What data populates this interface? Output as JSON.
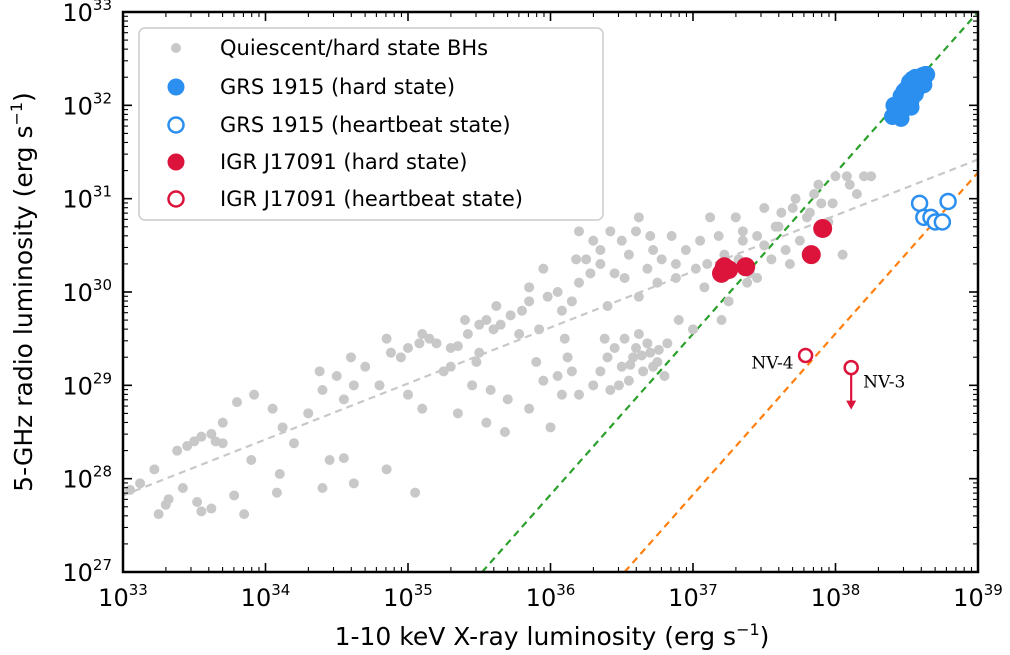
{
  "chart_data": {
    "type": "scatter",
    "xscale": "log",
    "yscale": "log",
    "xlim_exp": [
      33,
      39
    ],
    "ylim_exp": [
      27,
      33
    ],
    "tick_base": "10",
    "x_ticks": [
      "33",
      "34",
      "35",
      "36",
      "37",
      "38",
      "39"
    ],
    "y_ticks": [
      "27",
      "28",
      "29",
      "30",
      "31",
      "32",
      "33"
    ],
    "xlabel": {
      "text": "1-10 keV X-ray luminosity (erg s",
      "exp": "−1",
      "close": ")"
    },
    "ylabel": {
      "text": "5-GHz radio luminosity (erg s",
      "exp": "−1",
      "close": ")"
    },
    "legend": {
      "placement": "top-left",
      "entries": [
        {
          "label": "Quiescent/hard state BHs",
          "marker": "small-filled",
          "color": "#c8c8c8"
        },
        {
          "label": "GRS 1915 (hard state)",
          "marker": "filled",
          "color": "#2b8ff0"
        },
        {
          "label": "GRS 1915 (heartbeat state)",
          "marker": "open",
          "color": "#2b8ff0"
        },
        {
          "label": "IGR J17091 (hard state)",
          "marker": "filled",
          "color": "#dc143c"
        },
        {
          "label": "IGR J17091 (heartbeat state)",
          "marker": "open",
          "color": "#dc143c"
        }
      ]
    },
    "fit_lines": [
      {
        "name": "quiescent-hard-fit",
        "color": "#c8c8c8",
        "points": [
          [
            33.0,
            27.82
          ],
          [
            39.0,
            31.42
          ]
        ]
      },
      {
        "name": "green-correlation",
        "color": "#2ca02c",
        "points": [
          [
            35.52,
            27.0
          ],
          [
            39.0,
            33.0
          ]
        ]
      },
      {
        "name": "orange-correlation",
        "color": "#ff7f0e",
        "points": [
          [
            36.52,
            27.0
          ],
          [
            39.0,
            31.28
          ]
        ]
      }
    ],
    "series": [
      {
        "name": "Quiescent/hard state BHs",
        "color": "#c8c8c8",
        "points": [
          [
            33.05,
            27.88
          ],
          [
            33.22,
            28.1
          ],
          [
            33.38,
            28.3
          ],
          [
            33.5,
            28.4
          ],
          [
            33.65,
            28.4
          ],
          [
            33.7,
            28.38
          ],
          [
            33.9,
            28.2
          ],
          [
            34.05,
            28.75
          ],
          [
            34.12,
            28.55
          ],
          [
            34.2,
            28.38
          ],
          [
            34.3,
            28.7
          ],
          [
            34.4,
            28.95
          ],
          [
            34.5,
            29.1
          ],
          [
            34.55,
            28.85
          ],
          [
            34.62,
            29.0
          ],
          [
            34.7,
            29.2
          ],
          [
            34.8,
            29.0
          ],
          [
            34.88,
            29.35
          ],
          [
            34.95,
            29.3
          ],
          [
            35.0,
            29.4
          ],
          [
            35.08,
            29.45
          ],
          [
            35.15,
            29.5
          ],
          [
            35.2,
            29.45
          ],
          [
            35.25,
            29.15
          ],
          [
            35.3,
            29.4
          ],
          [
            35.35,
            29.42
          ],
          [
            35.42,
            29.55
          ],
          [
            35.5,
            29.65
          ],
          [
            35.55,
            29.7
          ],
          [
            35.6,
            29.6
          ],
          [
            35.65,
            29.65
          ],
          [
            35.72,
            29.75
          ],
          [
            35.8,
            29.8
          ],
          [
            35.85,
            29.9
          ],
          [
            35.92,
            29.6
          ],
          [
            35.98,
            29.95
          ],
          [
            36.05,
            30.0
          ],
          [
            36.1,
            29.5
          ],
          [
            36.15,
            29.9
          ],
          [
            36.2,
            30.1
          ],
          [
            36.25,
            30.35
          ],
          [
            36.3,
            30.55
          ],
          [
            36.35,
            30.3
          ],
          [
            36.4,
            29.85
          ],
          [
            36.45,
            30.2
          ],
          [
            36.5,
            30.55
          ],
          [
            36.55,
            30.4
          ],
          [
            36.6,
            30.65
          ],
          [
            36.62,
            29.95
          ],
          [
            36.68,
            30.25
          ],
          [
            36.72,
            30.45
          ],
          [
            36.78,
            30.35
          ],
          [
            36.85,
            30.6
          ],
          [
            36.88,
            30.15
          ],
          [
            36.95,
            30.45
          ],
          [
            37.02,
            30.25
          ],
          [
            37.05,
            30.55
          ],
          [
            37.1,
            30.3
          ],
          [
            37.18,
            30.6
          ],
          [
            37.22,
            30.4
          ],
          [
            37.3,
            30.8
          ],
          [
            37.35,
            30.55
          ],
          [
            37.38,
            30.1
          ],
          [
            37.45,
            30.6
          ],
          [
            37.5,
            30.9
          ],
          [
            37.55,
            30.35
          ],
          [
            37.6,
            30.7
          ],
          [
            37.65,
            30.45
          ],
          [
            37.7,
            30.9
          ],
          [
            37.75,
            30.55
          ],
          [
            37.8,
            30.8
          ],
          [
            37.85,
            31.05
          ],
          [
            37.9,
            30.95
          ],
          [
            37.95,
            30.75
          ],
          [
            38.05,
            30.4
          ],
          [
            38.1,
            31.15
          ],
          [
            38.15,
            31.05
          ],
          [
            38.2,
            31.24
          ],
          [
            38.25,
            31.24
          ],
          [
            35.9,
            29.25
          ],
          [
            36.05,
            29.1
          ],
          [
            36.2,
            28.9
          ],
          [
            36.4,
            29.3
          ],
          [
            36.5,
            29.2
          ],
          [
            36.55,
            29.05
          ],
          [
            36.6,
            29.4
          ],
          [
            36.65,
            29.15
          ],
          [
            36.7,
            29.35
          ],
          [
            36.75,
            29.25
          ],
          [
            36.8,
            29.1
          ],
          [
            36.82,
            29.45
          ],
          [
            36.45,
            29.4
          ],
          [
            36.52,
            29.5
          ],
          [
            36.58,
            29.3
          ],
          [
            36.62,
            29.55
          ],
          [
            36.68,
            29.45
          ],
          [
            36.72,
            29.2
          ],
          [
            36.48,
            29.0
          ],
          [
            36.56,
            29.22
          ],
          [
            36.64,
            29.32
          ],
          [
            36.76,
            29.38
          ],
          [
            35.35,
            28.7
          ],
          [
            35.55,
            28.6
          ],
          [
            35.7,
            28.85
          ],
          [
            35.85,
            28.75
          ],
          [
            35.95,
            29.05
          ],
          [
            36.0,
            28.55
          ],
          [
            36.15,
            29.15
          ],
          [
            36.3,
            29.0
          ],
          [
            36.35,
            29.15
          ],
          [
            36.42,
            28.95
          ],
          [
            36.9,
            29.7
          ],
          [
            37.0,
            29.6
          ],
          [
            37.25,
            29.9
          ],
          [
            37.4,
            30.2
          ],
          [
            37.2,
            29.7
          ],
          [
            35.05,
            27.85
          ],
          [
            34.85,
            28.1
          ],
          [
            34.55,
            28.22
          ],
          [
            34.4,
            27.9
          ],
          [
            34.1,
            28.05
          ],
          [
            33.78,
            27.82
          ],
          [
            33.52,
            27.75
          ],
          [
            33.42,
            27.9
          ],
          [
            33.3,
            27.72
          ],
          [
            33.25,
            27.62
          ],
          [
            33.32,
            27.78
          ],
          [
            33.12,
            27.95
          ],
          [
            33.55,
            27.65
          ],
          [
            33.62,
            27.68
          ],
          [
            33.85,
            27.62
          ],
          [
            34.08,
            27.85
          ],
          [
            34.45,
            28.2
          ],
          [
            34.62,
            27.95
          ],
          [
            35.0,
            28.9
          ],
          [
            35.1,
            28.75
          ],
          [
            35.45,
            29.0
          ],
          [
            35.48,
            29.25
          ],
          [
            35.58,
            28.95
          ],
          [
            35.68,
            28.5
          ],
          [
            36.08,
            28.9
          ],
          [
            36.12,
            29.3
          ],
          [
            36.38,
            29.5
          ],
          [
            37.45,
            30.15
          ],
          [
            37.58,
            30.7
          ],
          [
            37.62,
            30.85
          ],
          [
            37.72,
            31.0
          ],
          [
            37.82,
            30.85
          ],
          [
            37.88,
            31.15
          ],
          [
            38.0,
            31.24
          ],
          [
            38.08,
            31.24
          ],
          [
            37.98,
            30.95
          ],
          [
            36.62,
            30.8
          ],
          [
            36.42,
            30.65
          ],
          [
            36.18,
            30.35
          ],
          [
            35.95,
            30.25
          ],
          [
            35.85,
            30.05
          ],
          [
            35.62,
            29.85
          ],
          [
            35.4,
            29.7
          ],
          [
            35.1,
            29.55
          ],
          [
            34.85,
            29.5
          ],
          [
            34.6,
            29.3
          ],
          [
            34.38,
            29.15
          ],
          [
            33.92,
            28.9
          ],
          [
            33.8,
            28.82
          ],
          [
            33.7,
            28.6
          ],
          [
            33.55,
            28.45
          ],
          [
            33.45,
            28.35
          ],
          [
            33.62,
            28.48
          ],
          [
            36.2,
            30.65
          ],
          [
            36.35,
            30.45
          ],
          [
            36.28,
            30.2
          ],
          [
            36.52,
            30.15
          ],
          [
            36.75,
            30.1
          ],
          [
            37.08,
            30.05
          ],
          [
            37.12,
            30.8
          ],
          [
            37.32,
            30.35
          ],
          [
            37.35,
            30.65
          ],
          [
            37.5,
            30.5
          ],
          [
            37.68,
            30.3
          ],
          [
            36.88,
            30.3
          ],
          [
            36.7,
            30.6
          ],
          [
            36.08,
            29.8
          ],
          [
            35.78,
            29.55
          ],
          [
            35.5,
            29.35
          ],
          [
            35.3,
            29.2
          ]
        ]
      },
      {
        "name": "GRS 1915 (hard state)",
        "color": "#2b8ff0",
        "points": [
          [
            38.4,
            31.88
          ],
          [
            38.42,
            31.95
          ],
          [
            38.44,
            32.0
          ],
          [
            38.45,
            31.97
          ],
          [
            38.46,
            32.02
          ],
          [
            38.47,
            32.05
          ],
          [
            38.48,
            32.08
          ],
          [
            38.49,
            32.1
          ],
          [
            38.5,
            32.05
          ],
          [
            38.5,
            32.12
          ],
          [
            38.51,
            32.08
          ],
          [
            38.52,
            32.15
          ],
          [
            38.52,
            32.18
          ],
          [
            38.53,
            32.12
          ],
          [
            38.54,
            32.2
          ],
          [
            38.55,
            32.22
          ],
          [
            38.55,
            32.15
          ],
          [
            38.56,
            32.18
          ],
          [
            38.57,
            32.25
          ],
          [
            38.58,
            32.22
          ],
          [
            38.58,
            32.28
          ],
          [
            38.59,
            32.28
          ],
          [
            38.6,
            32.3
          ],
          [
            38.6,
            32.25
          ],
          [
            38.61,
            32.32
          ],
          [
            38.62,
            32.28
          ],
          [
            38.63,
            32.33
          ],
          [
            38.64,
            32.33
          ],
          [
            38.45,
            31.92
          ],
          [
            38.43,
            31.98
          ],
          [
            38.47,
            31.95
          ],
          [
            38.49,
            32.02
          ],
          [
            38.51,
            32.02
          ],
          [
            38.53,
            32.05
          ],
          [
            38.56,
            32.12
          ],
          [
            38.59,
            32.2
          ],
          [
            38.62,
            32.22
          ],
          [
            38.46,
            32.1
          ],
          [
            38.48,
            32.15
          ],
          [
            38.5,
            32.18
          ],
          [
            38.52,
            32.25
          ],
          [
            38.54,
            32.28
          ],
          [
            38.56,
            32.3
          ],
          [
            38.41,
            32.0
          ],
          [
            38.44,
            31.9
          ],
          [
            38.46,
            31.86
          ],
          [
            38.53,
            31.98
          ]
        ]
      },
      {
        "name": "GRS 1915 (heartbeat state)",
        "color": "#2b8ff0",
        "points": [
          [
            38.59,
            30.95
          ],
          [
            38.62,
            30.8
          ],
          [
            38.67,
            30.8
          ],
          [
            38.7,
            30.75
          ],
          [
            38.75,
            30.75
          ],
          [
            38.79,
            30.97
          ]
        ]
      },
      {
        "name": "IGR J17091 (hard state)",
        "color": "#dc143c",
        "points": [
          [
            37.2,
            30.2
          ],
          [
            37.22,
            30.27
          ],
          [
            37.25,
            30.24
          ],
          [
            37.37,
            30.27
          ],
          [
            37.83,
            30.4
          ],
          [
            37.91,
            30.68
          ]
        ]
      },
      {
        "name": "IGR J17091 (heartbeat state)",
        "color": "#dc143c",
        "points": [
          [
            37.79,
            29.32
          ],
          [
            38.11,
            29.19
          ]
        ]
      }
    ],
    "annotations": [
      {
        "text": "NV-4",
        "x": 37.79,
        "y": 29.32,
        "anchor": "left"
      },
      {
        "text": "NV-3",
        "x": 38.11,
        "y": 29.19,
        "anchor": "right",
        "upper_limit": true
      }
    ]
  }
}
